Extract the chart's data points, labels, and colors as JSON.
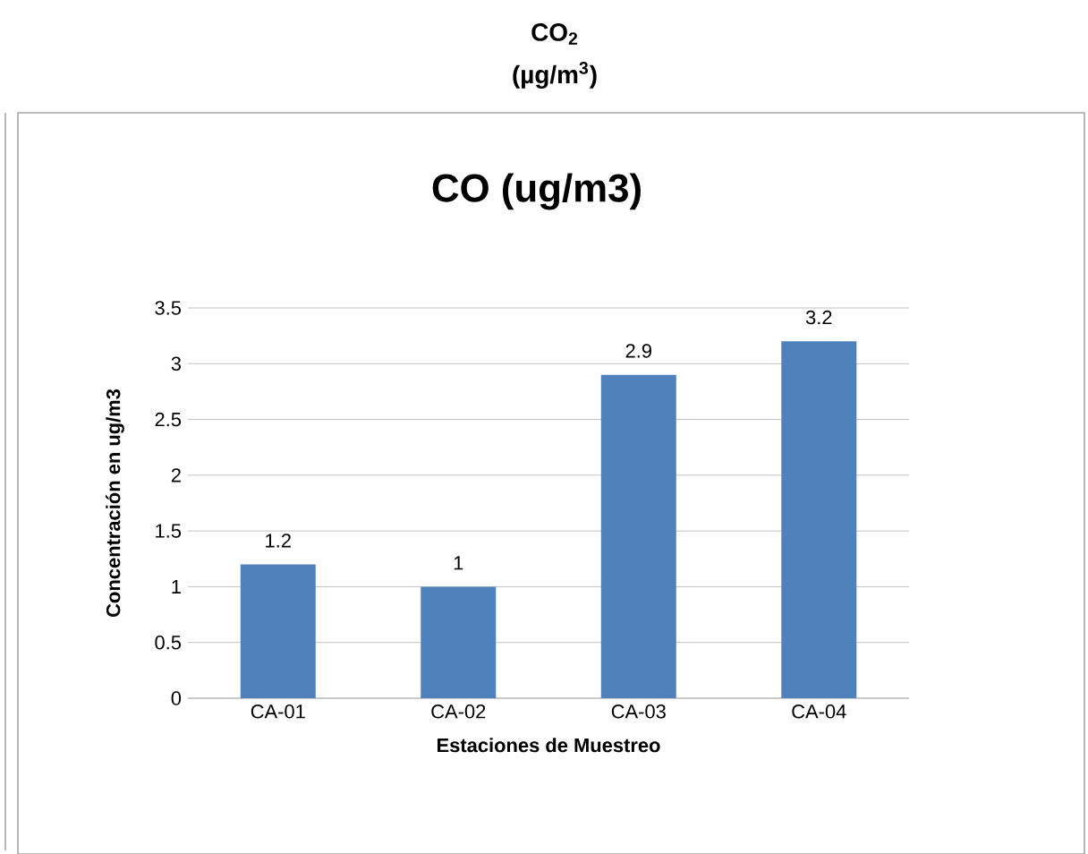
{
  "chart_data": {
    "type": "bar",
    "title": "CO (ug/m3)",
    "xlabel": "Estaciones de Muestreo",
    "ylabel": "Concentración en ug/m3",
    "annotations": [
      "CO$_{2}$",
      "(µg/m$^{3}$)"
    ],
    "categories": [
      "CA-01",
      "CA-02",
      "CA-03",
      "CA-04"
    ],
    "values": [
      1.2,
      1,
      2.9,
      3.2
    ],
    "color": "#4f81bd",
    "ylim": [
      0,
      3.5
    ],
    "yticks": [
      0,
      0.5,
      1,
      1.5,
      2,
      2.5,
      3,
      3.5
    ],
    "grid": "y",
    "data_labels": true
  }
}
